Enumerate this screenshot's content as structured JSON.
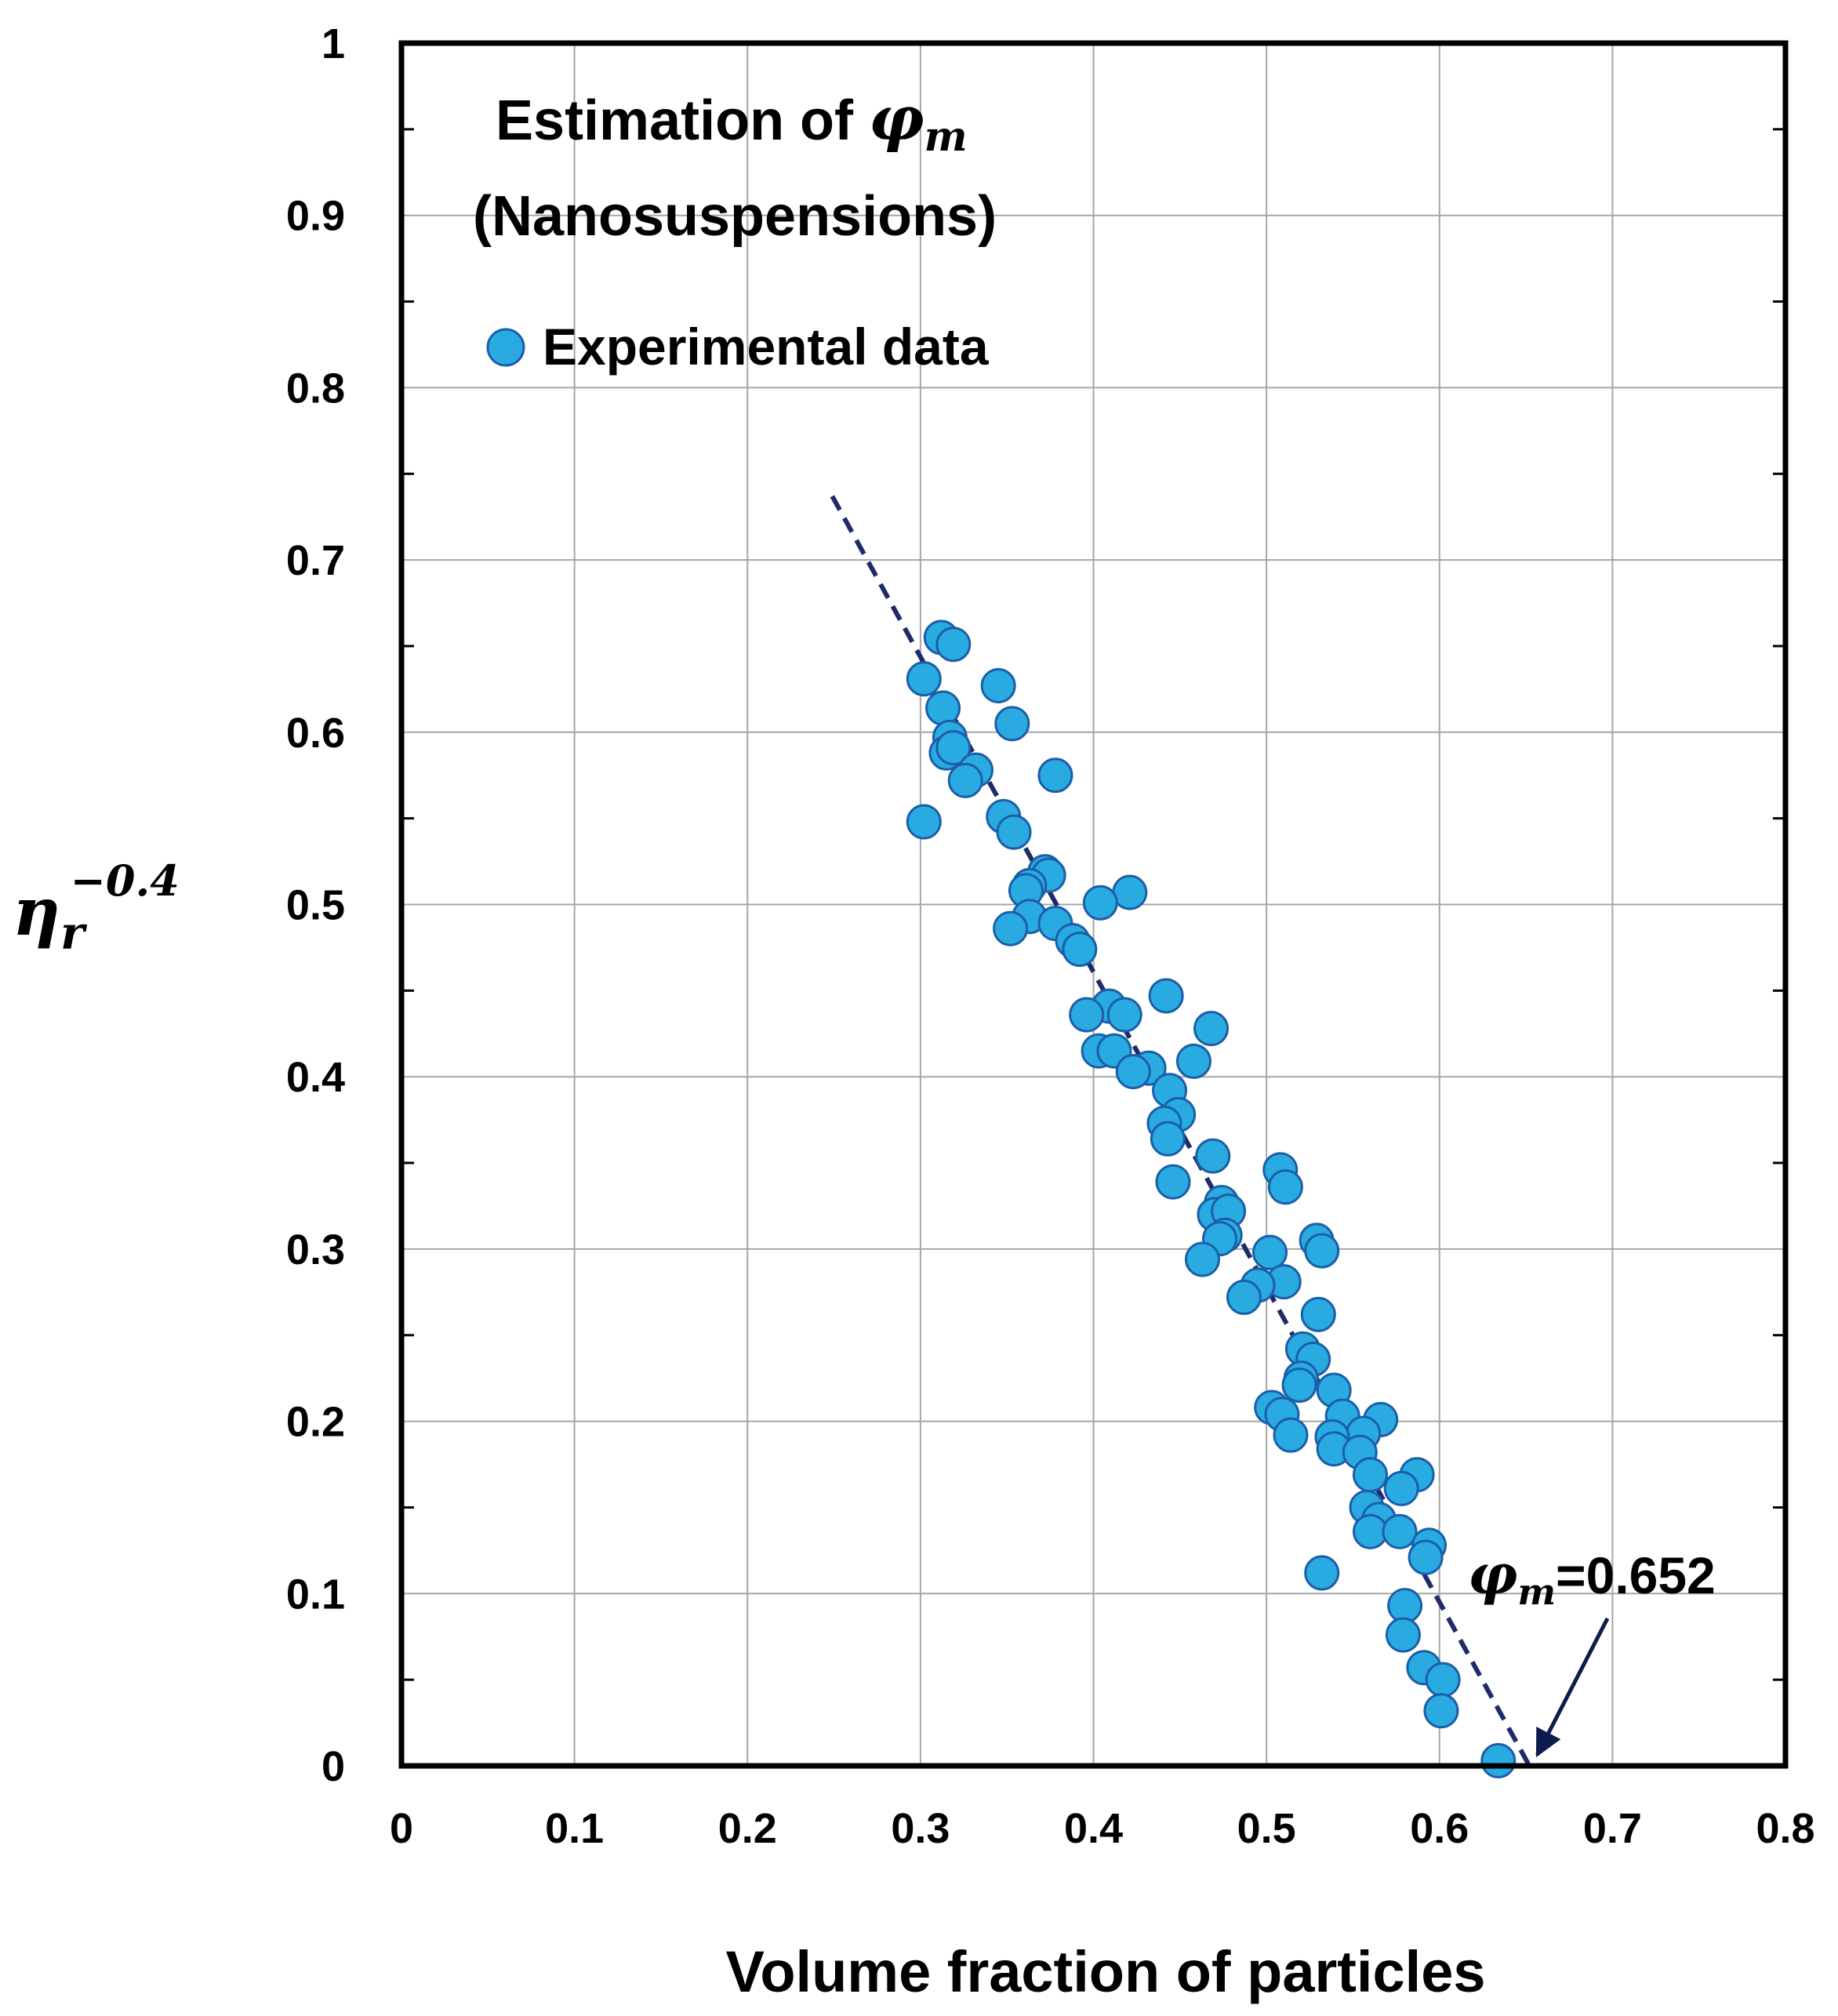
{
  "chart_data": {
    "type": "scatter",
    "title_prefix": "Estimation of ",
    "title_symbol": "φ",
    "title_symbol_sub": "m",
    "subtitle": "(Nanosuspensions)",
    "xlabel": "Volume fraction of particles",
    "ylabel_base": "η",
    "ylabel_sub": "r",
    "ylabel_sup": "−0.4",
    "xlim": [
      0,
      0.8
    ],
    "ylim": [
      0,
      1
    ],
    "x_ticks": [
      "0",
      "0.1",
      "0.2",
      "0.3",
      "0.4",
      "0.5",
      "0.6",
      "0.7",
      "0.8"
    ],
    "y_ticks": [
      "0",
      "0.1",
      "0.2",
      "0.3",
      "0.4",
      "0.5",
      "0.6",
      "0.7",
      "0.8",
      "0.9",
      "1"
    ],
    "grid": true,
    "legend": {
      "label": "Experimental data",
      "position": "top-left"
    },
    "marker_color": "#29ABE2",
    "marker_edge": "#1B5FA8",
    "fit_line_color": "#1F2A6B",
    "series": [
      {
        "name": "Experimental data",
        "points": [
          [
            0.312,
            0.655
          ],
          [
            0.319,
            0.651
          ],
          [
            0.302,
            0.631
          ],
          [
            0.345,
            0.627
          ],
          [
            0.313,
            0.614
          ],
          [
            0.353,
            0.605
          ],
          [
            0.317,
            0.597
          ],
          [
            0.315,
            0.588
          ],
          [
            0.319,
            0.591
          ],
          [
            0.332,
            0.578
          ],
          [
            0.326,
            0.572
          ],
          [
            0.378,
            0.575
          ],
          [
            0.302,
            0.548
          ],
          [
            0.348,
            0.551
          ],
          [
            0.354,
            0.542
          ],
          [
            0.372,
            0.519
          ],
          [
            0.374,
            0.517
          ],
          [
            0.363,
            0.511
          ],
          [
            0.361,
            0.508
          ],
          [
            0.421,
            0.507
          ],
          [
            0.404,
            0.501
          ],
          [
            0.363,
            0.493
          ],
          [
            0.352,
            0.486
          ],
          [
            0.378,
            0.489
          ],
          [
            0.388,
            0.479
          ],
          [
            0.392,
            0.474
          ],
          [
            0.442,
            0.447
          ],
          [
            0.409,
            0.441
          ],
          [
            0.396,
            0.436
          ],
          [
            0.418,
            0.436
          ],
          [
            0.468,
            0.428
          ],
          [
            0.403,
            0.415
          ],
          [
            0.412,
            0.415
          ],
          [
            0.458,
            0.409
          ],
          [
            0.432,
            0.405
          ],
          [
            0.423,
            0.403
          ],
          [
            0.444,
            0.392
          ],
          [
            0.449,
            0.378
          ],
          [
            0.441,
            0.373
          ],
          [
            0.443,
            0.364
          ],
          [
            0.469,
            0.354
          ],
          [
            0.446,
            0.339
          ],
          [
            0.508,
            0.346
          ],
          [
            0.511,
            0.336
          ],
          [
            0.474,
            0.327
          ],
          [
            0.47,
            0.32
          ],
          [
            0.478,
            0.322
          ],
          [
            0.476,
            0.308
          ],
          [
            0.473,
            0.306
          ],
          [
            0.529,
            0.305
          ],
          [
            0.532,
            0.299
          ],
          [
            0.463,
            0.294
          ],
          [
            0.502,
            0.298
          ],
          [
            0.51,
            0.281
          ],
          [
            0.495,
            0.279
          ],
          [
            0.487,
            0.272
          ],
          [
            0.53,
            0.262
          ],
          [
            0.521,
            0.242
          ],
          [
            0.527,
            0.236
          ],
          [
            0.52,
            0.225
          ],
          [
            0.519,
            0.221
          ],
          [
            0.539,
            0.218
          ],
          [
            0.503,
            0.208
          ],
          [
            0.509,
            0.204
          ],
          [
            0.544,
            0.203
          ],
          [
            0.566,
            0.201
          ],
          [
            0.556,
            0.193
          ],
          [
            0.514,
            0.192
          ],
          [
            0.538,
            0.191
          ],
          [
            0.539,
            0.184
          ],
          [
            0.554,
            0.182
          ],
          [
            0.56,
            0.169
          ],
          [
            0.587,
            0.169
          ],
          [
            0.578,
            0.161
          ],
          [
            0.558,
            0.15
          ],
          [
            0.565,
            0.143
          ],
          [
            0.56,
            0.136
          ],
          [
            0.577,
            0.136
          ],
          [
            0.594,
            0.128
          ],
          [
            0.592,
            0.121
          ],
          [
            0.532,
            0.112
          ],
          [
            0.58,
            0.093
          ],
          [
            0.579,
            0.076
          ],
          [
            0.591,
            0.057
          ],
          [
            0.602,
            0.05
          ],
          [
            0.601,
            0.032
          ],
          [
            0.634,
            0.003
          ]
        ]
      }
    ],
    "fit_line": {
      "x": [
        0.249,
        0.652
      ],
      "y": [
        0.737,
        0.0
      ]
    },
    "annotation": {
      "symbol": "φ",
      "symbol_sub": "m",
      "text": "=0.652",
      "points_to": [
        0.652,
        0.0
      ]
    }
  }
}
